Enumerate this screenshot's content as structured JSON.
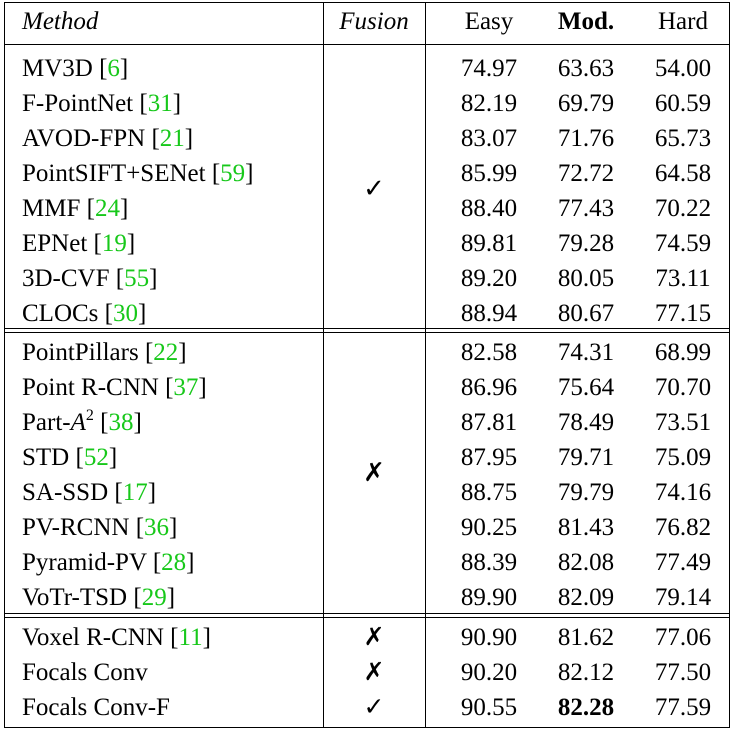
{
  "header": {
    "method": "Method",
    "fusion": "Fusion",
    "easy": "Easy",
    "mod": "Mod.",
    "hard": "Hard"
  },
  "marks": {
    "check": "✓",
    "cross": "✗"
  },
  "groups": [
    {
      "fusion": "✓",
      "rows": [
        {
          "name": "MV3D ",
          "ref": "6",
          "easy": "74.97",
          "mod": "63.63",
          "hard": "54.00"
        },
        {
          "name": "F-PointNet ",
          "ref": "31",
          "easy": "82.19",
          "mod": "69.79",
          "hard": "60.59"
        },
        {
          "name": "AVOD-FPN ",
          "ref": "21",
          "easy": "83.07",
          "mod": "71.76",
          "hard": "65.73"
        },
        {
          "name": "PointSIFT+SENet ",
          "ref": "59",
          "easy": "85.99",
          "mod": "72.72",
          "hard": "64.58"
        },
        {
          "name": "MMF ",
          "ref": "24",
          "easy": "88.40",
          "mod": "77.43",
          "hard": "70.22"
        },
        {
          "name": "EPNet ",
          "ref": "19",
          "easy": "89.81",
          "mod": "79.28",
          "hard": "74.59"
        },
        {
          "name": "3D-CVF ",
          "ref": "55",
          "easy": "89.20",
          "mod": "80.05",
          "hard": "73.11"
        },
        {
          "name": "CLOCs ",
          "ref": "30",
          "easy": "88.94",
          "mod": "80.67",
          "hard": "77.15"
        }
      ]
    },
    {
      "fusion": "✗",
      "rows": [
        {
          "name": "PointPillars ",
          "ref": "22",
          "easy": "82.58",
          "mod": "74.31",
          "hard": "68.99"
        },
        {
          "name": "Point R-CNN ",
          "ref": "37",
          "easy": "86.96",
          "mod": "75.64",
          "hard": "70.70"
        },
        {
          "name": "Part-",
          "name_italic": "A",
          "sup": "2",
          "ref": "38",
          "easy": "87.81",
          "mod": "78.49",
          "hard": "73.51"
        },
        {
          "name": "STD ",
          "ref": "52",
          "easy": "87.95",
          "mod": "79.71",
          "hard": "75.09"
        },
        {
          "name": "SA-SSD ",
          "ref": "17",
          "easy": "88.75",
          "mod": "79.79",
          "hard": "74.16"
        },
        {
          "name": "PV-RCNN ",
          "ref": "36",
          "easy": "90.25",
          "mod": "81.43",
          "hard": "76.82"
        },
        {
          "name": "Pyramid-PV ",
          "ref": "28",
          "easy": "88.39",
          "mod": "82.08",
          "hard": "77.49"
        },
        {
          "name": "VoTr-TSD ",
          "ref": "29",
          "easy": "89.90",
          "mod": "82.09",
          "hard": "79.14"
        }
      ]
    },
    {
      "rows": [
        {
          "name": "Voxel R-CNN ",
          "ref": "11",
          "fusion": "✗",
          "easy": "90.90",
          "mod": "81.62",
          "hard": "77.06"
        },
        {
          "name": "Focals Conv",
          "fusion": "✗",
          "easy": "90.20",
          "mod": "82.12",
          "hard": "77.50"
        },
        {
          "name": "Focals Conv-F",
          "fusion": "✓",
          "easy": "90.55",
          "mod": "82.28",
          "hard": "77.59",
          "mod_bold": true
        }
      ]
    }
  ]
}
